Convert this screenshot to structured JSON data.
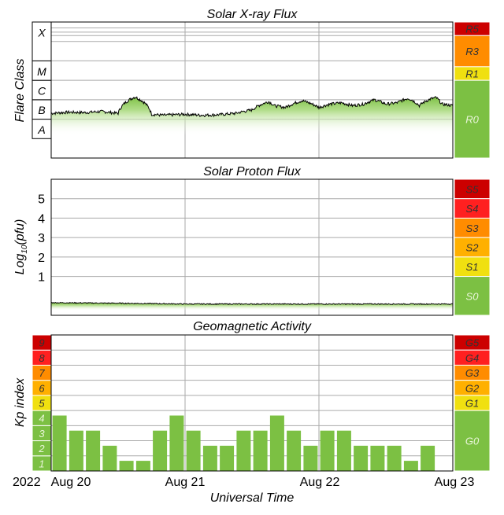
{
  "chart_data": [
    {
      "type": "area",
      "title": "Solar X-ray Flux",
      "ylabel": "Flare Class",
      "y_scale": "log",
      "y_units": "W/m^2",
      "ylim": [
        1e-09,
        0.01
      ],
      "class_labels": [
        "A",
        "B",
        "C",
        "M",
        "X"
      ],
      "scale_labels": [
        {
          "label": "R5",
          "color": "#cc0000"
        },
        {
          "label": "R3",
          "color": "#ff8c00"
        },
        {
          "label": "R1",
          "color": "#f0e010"
        },
        {
          "label": "R0",
          "color": "#7cc043"
        }
      ],
      "flux": {
        "x_hours": [
          0,
          3,
          6,
          9,
          12,
          15,
          18,
          20,
          24,
          27,
          30,
          33,
          36,
          39,
          40,
          42,
          45,
          48,
          50,
          52,
          54,
          56,
          58,
          60,
          62,
          64,
          66,
          68,
          69,
          70,
          72
        ],
        "values": [
          2e-07,
          2.3e-07,
          2.2e-07,
          2.5e-07,
          2e-07,
          1.4e-06,
          1.8e-07,
          1.6e-07,
          1.8e-07,
          1.6e-07,
          1.7e-07,
          2e-07,
          3e-07,
          8e-07,
          5e-07,
          4e-07,
          9e-07,
          4e-07,
          6e-07,
          7e-07,
          5e-07,
          6e-07,
          1e-06,
          6e-07,
          7e-07,
          1.2e-06,
          5e-07,
          1.1e-06,
          1.3e-06,
          6e-07,
          5e-07
        ]
      }
    },
    {
      "type": "area",
      "title": "Solar Proton Flux",
      "ylabel": "Log10(pfu)",
      "ylabel_main": "Log",
      "ylabel_sub": "10",
      "ylabel_tail": "(pfu)",
      "ylim": [
        -1,
        6
      ],
      "y_ticks": [
        "1",
        "2",
        "3",
        "4",
        "5"
      ],
      "scale_labels": [
        {
          "label": "S5",
          "color": "#cc0000"
        },
        {
          "label": "S4",
          "color": "#ff2020"
        },
        {
          "label": "S3",
          "color": "#ff8c00"
        },
        {
          "label": "S2",
          "color": "#ffb000"
        },
        {
          "label": "S1",
          "color": "#f0e010"
        },
        {
          "label": "S0",
          "color": "#7cc043"
        }
      ],
      "flux": {
        "x_hours": [
          0,
          12,
          24,
          36,
          48,
          60,
          72
        ],
        "values": [
          -0.35,
          -0.38,
          -0.42,
          -0.42,
          -0.42,
          -0.42,
          -0.42
        ]
      }
    },
    {
      "type": "bar",
      "title": "Geomagnetic Activity",
      "ylabel": "Kp index",
      "xlabel": "Universal Time",
      "ylim": [
        0,
        9
      ],
      "kp_labels": [
        "1",
        "2",
        "3",
        "4",
        "5",
        "6",
        "7",
        "8",
        "9"
      ],
      "kp_colors": [
        "#7cc043",
        "#7cc043",
        "#7cc043",
        "#7cc043",
        "#f0e010",
        "#ffb000",
        "#ff8c00",
        "#ff2020",
        "#cc0000"
      ],
      "scale_labels": [
        {
          "label": "G5",
          "color": "#cc0000"
        },
        {
          "label": "G4",
          "color": "#ff2020"
        },
        {
          "label": "G3",
          "color": "#ff8c00"
        },
        {
          "label": "G2",
          "color": "#ffb000"
        },
        {
          "label": "G1",
          "color": "#f0e010"
        },
        {
          "label": "G0",
          "color": "#7cc043"
        }
      ],
      "kp_values": [
        3.67,
        2.67,
        2.67,
        1.67,
        0.67,
        0.67,
        2.67,
        3.67,
        2.67,
        1.67,
        1.67,
        2.67,
        2.67,
        3.67,
        2.67,
        1.67,
        2.67,
        2.67,
        1.67,
        1.67,
        1.67,
        0.67,
        1.67
      ],
      "bar_color": "#7cc043"
    }
  ],
  "x_axis": {
    "year_label": "2022",
    "tick_labels": [
      "Aug 20",
      "Aug 21",
      "Aug 22",
      "Aug 23"
    ],
    "xlim_hours": [
      0,
      72
    ]
  },
  "colors": {
    "frame": "#000000",
    "grid": "#aaaaaa",
    "fill_green": "#7cc043",
    "panel_bg": "#ffffff"
  }
}
